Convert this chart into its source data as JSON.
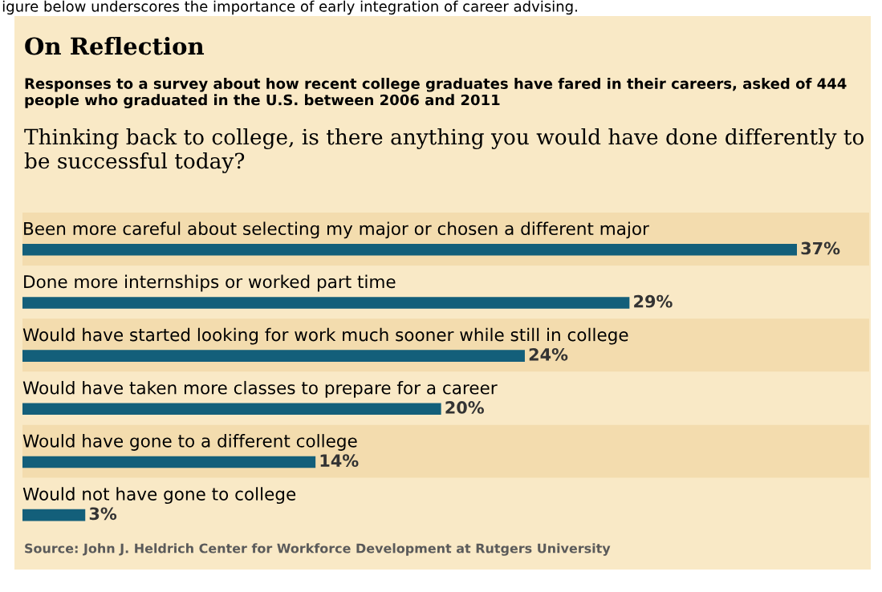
{
  "chart_data": {
    "type": "bar",
    "orientation": "horizontal",
    "title": "On Reflection",
    "subtitle": "Responses to a survey about how recent college graduates have fared in their careers, asked of 444 people who graduated in the U.S. between 2006 and 2011",
    "annotations": [
      "igure below underscores the importance of early integration of career advising.",
      "Thinking back to college, is there anything you would have done differently to be successful today?",
      "Source: John J. Heldrich Center for Workforce Development at Rutgers University"
    ],
    "categories": [
      "Been more careful about selecting my major or chosen a different major",
      "Done more internships or worked part time",
      "Would have started looking for work much sooner while still in college",
      "Would have taken more classes to prepare for a career",
      "Would have gone to a different college",
      "Would not have gone to college"
    ],
    "values": [
      37,
      29,
      24,
      20,
      14,
      3
    ],
    "value_labels": [
      "37%",
      "29%",
      "24%",
      "20%",
      "14%",
      "3%"
    ],
    "color": "#135f7a"
  }
}
